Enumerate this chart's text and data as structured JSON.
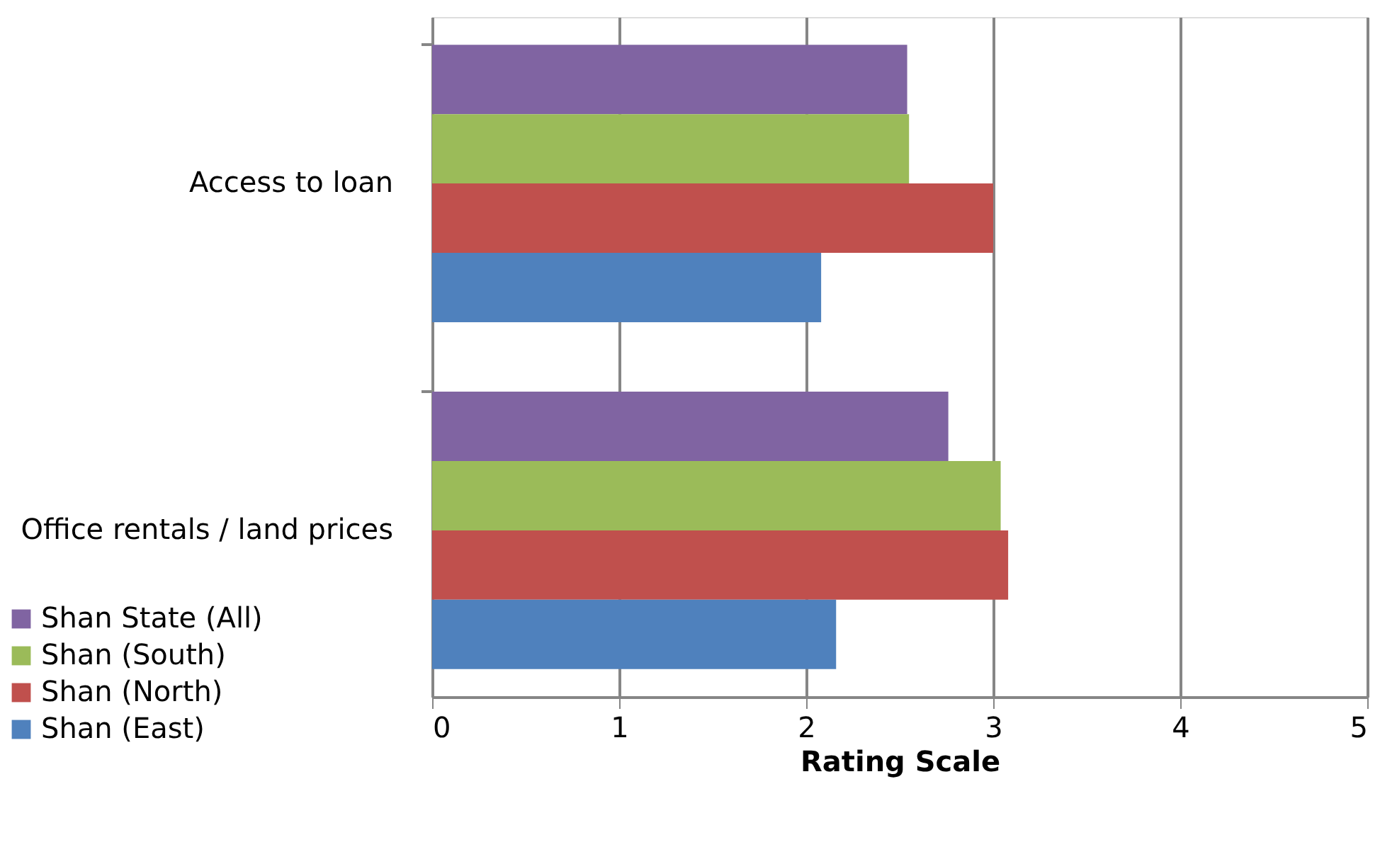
{
  "chart_data": {
    "type": "bar",
    "orientation": "horizontal",
    "xlabel": "Rating Scale",
    "categories": [
      "Access to loan",
      "Office rentals / land prices"
    ],
    "series": [
      {
        "name": "Shan State (All)",
        "color": "#8064a2",
        "values": [
          2.54,
          2.76
        ]
      },
      {
        "name": "Shan (South)",
        "color": "#9bbb59",
        "values": [
          2.55,
          3.04
        ]
      },
      {
        "name": "Shan (North)",
        "color": "#c0504d",
        "values": [
          3.0,
          3.08
        ]
      },
      {
        "name": "Shan  (East)",
        "color": "#4f81bd",
        "values": [
          2.08,
          2.16
        ]
      }
    ],
    "xlim": [
      0,
      5
    ],
    "xticks": [
      0,
      1,
      2,
      3,
      4,
      5
    ],
    "grid": "x",
    "legend": "bottom left"
  }
}
